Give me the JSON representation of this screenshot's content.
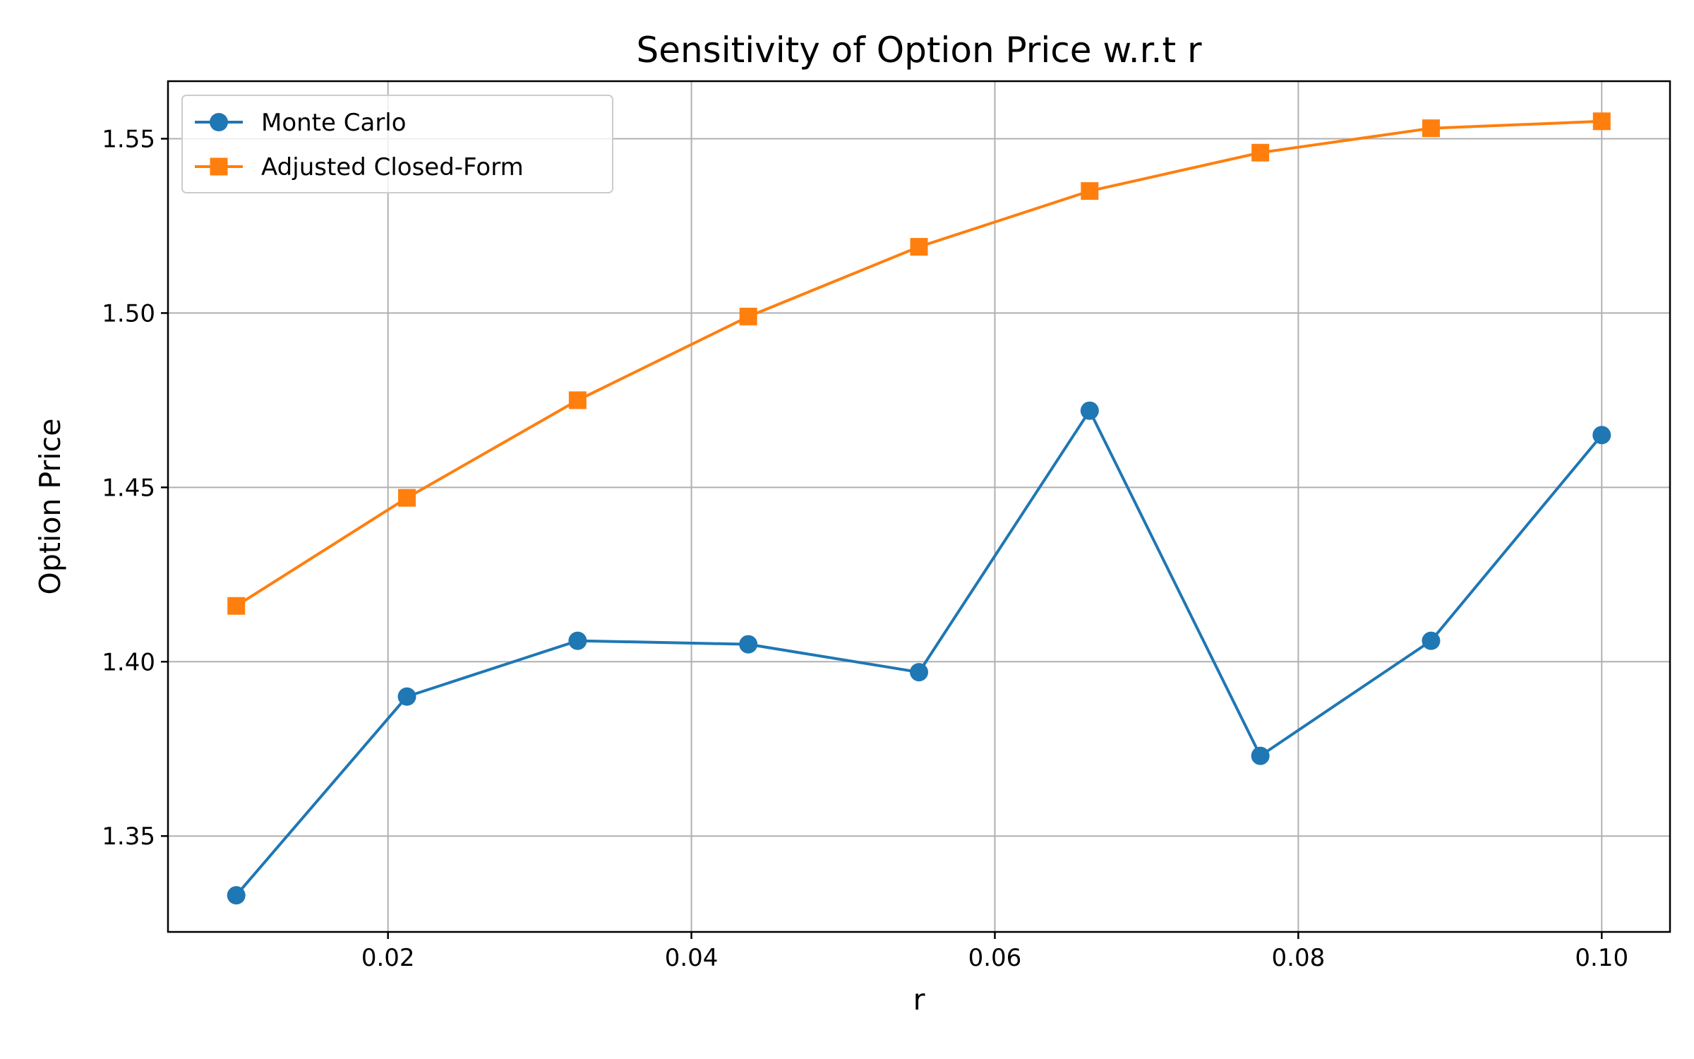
{
  "chart_data": {
    "type": "line",
    "title": "Sensitivity of Option Price w.r.t r",
    "xlabel": "r",
    "ylabel": "Option Price",
    "xlim": [
      0.0055,
      0.1045
    ],
    "ylim": [
      1.3225,
      1.5665
    ],
    "xticks": [
      0.02,
      0.04,
      0.06,
      0.08,
      0.1
    ],
    "xtick_labels": [
      "0.02",
      "0.04",
      "0.06",
      "0.08",
      "0.10"
    ],
    "yticks": [
      1.35,
      1.4,
      1.45,
      1.5,
      1.55
    ],
    "ytick_labels": [
      "1.35",
      "1.40",
      "1.45",
      "1.50",
      "1.55"
    ],
    "grid": true,
    "legend_position": "upper-left",
    "x": [
      0.01,
      0.02125,
      0.0325,
      0.04375,
      0.055,
      0.06625,
      0.0775,
      0.08875,
      0.1
    ],
    "series": [
      {
        "name": "Monte Carlo",
        "marker": "circle",
        "color": "#1f77b4",
        "values": [
          1.333,
          1.39,
          1.406,
          1.405,
          1.397,
          1.472,
          1.373,
          1.406,
          1.465
        ]
      },
      {
        "name": "Adjusted Closed-Form",
        "marker": "square",
        "color": "#ff7f0e",
        "values": [
          1.416,
          1.447,
          1.475,
          1.499,
          1.519,
          1.535,
          1.546,
          1.553,
          1.555
        ]
      }
    ]
  }
}
